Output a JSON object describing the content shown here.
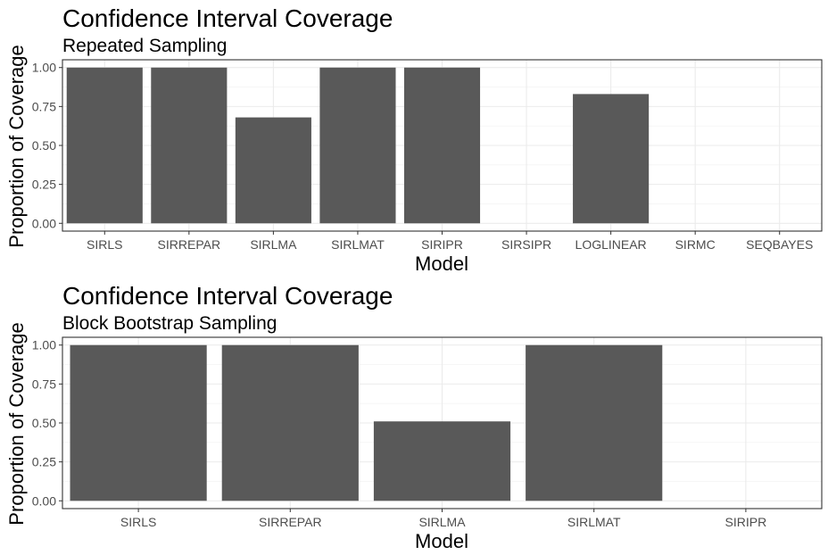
{
  "chart_data": [
    {
      "type": "bar",
      "title": "Confidence Interval Coverage",
      "subtitle": "Repeated Sampling",
      "xlabel": "Model",
      "ylabel": "Proportion of Coverage",
      "categories": [
        "SIRLS",
        "SIRREPAR",
        "SIRLMA",
        "SIRLMAT",
        "SIRIPR",
        "SIRSIPR",
        "LOGLINEAR",
        "SIRMC",
        "SEQBAYES"
      ],
      "values": [
        1.0,
        1.0,
        0.68,
        1.0,
        1.0,
        0,
        0.83,
        0,
        0
      ],
      "ylim": [
        0,
        1
      ],
      "yticks": [
        "0.00",
        "0.25",
        "0.50",
        "0.75",
        "1.00"
      ],
      "grid": true,
      "bar_color": "#595959"
    },
    {
      "type": "bar",
      "title": "Confidence Interval Coverage",
      "subtitle": "Block Bootstrap Sampling",
      "xlabel": "Model",
      "ylabel": "Proportion of Coverage",
      "categories": [
        "SIRLS",
        "SIRREPAR",
        "SIRLMA",
        "SIRLMAT",
        "SIRIPR"
      ],
      "values": [
        1.0,
        1.0,
        0.51,
        1.0,
        0
      ],
      "ylim": [
        0,
        1
      ],
      "yticks": [
        "0.00",
        "0.25",
        "0.50",
        "0.75",
        "1.00"
      ],
      "grid": true,
      "bar_color": "#595959"
    }
  ]
}
